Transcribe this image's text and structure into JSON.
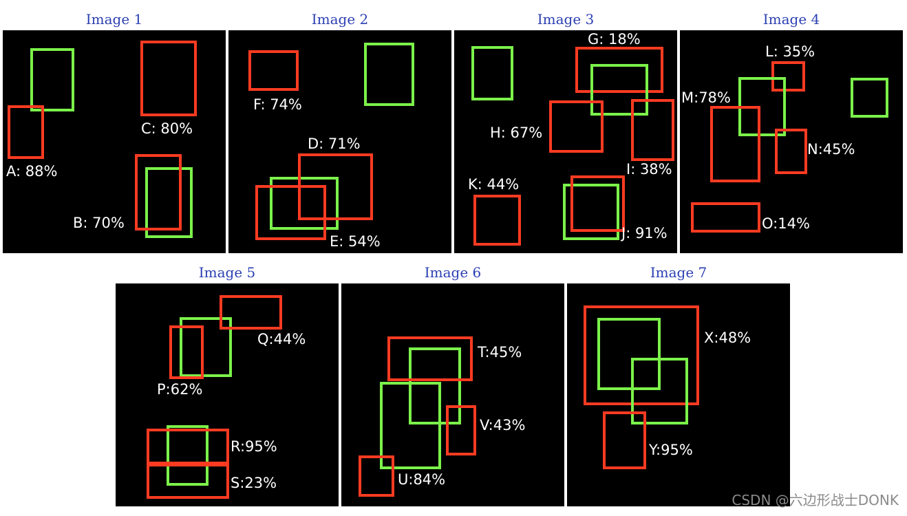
{
  "colors": {
    "detection": "#ff3b22",
    "ground_truth": "#7cf24a",
    "background": "#000000",
    "title": "#2b3fb3"
  },
  "panels": [
    {
      "title": "Image 1",
      "labels": [
        "A: 88%",
        "B: 70%",
        "C: 80%"
      ]
    },
    {
      "title": "Image 2",
      "labels": [
        "D: 71%",
        "E: 54%",
        "F: 74%"
      ]
    },
    {
      "title": "Image 3",
      "labels": [
        "G: 18%",
        "H: 67%",
        "I: 38%",
        "J: 91%",
        "K: 44%"
      ]
    },
    {
      "title": "Image 4",
      "labels": [
        "L: 35%",
        "M:78%",
        "N:45%",
        "O:14%"
      ]
    },
    {
      "title": "Image 5",
      "labels": [
        "P:62%",
        "Q:44%",
        "R:95%",
        "S:23%"
      ]
    },
    {
      "title": "Image 6",
      "labels": [
        "T:45%",
        "U:84%",
        "V:43%"
      ]
    },
    {
      "title": "Image 7",
      "labels": [
        "X:48%",
        "Y:95%"
      ]
    }
  ],
  "watermark": "CSDN @六边形战士DONK"
}
